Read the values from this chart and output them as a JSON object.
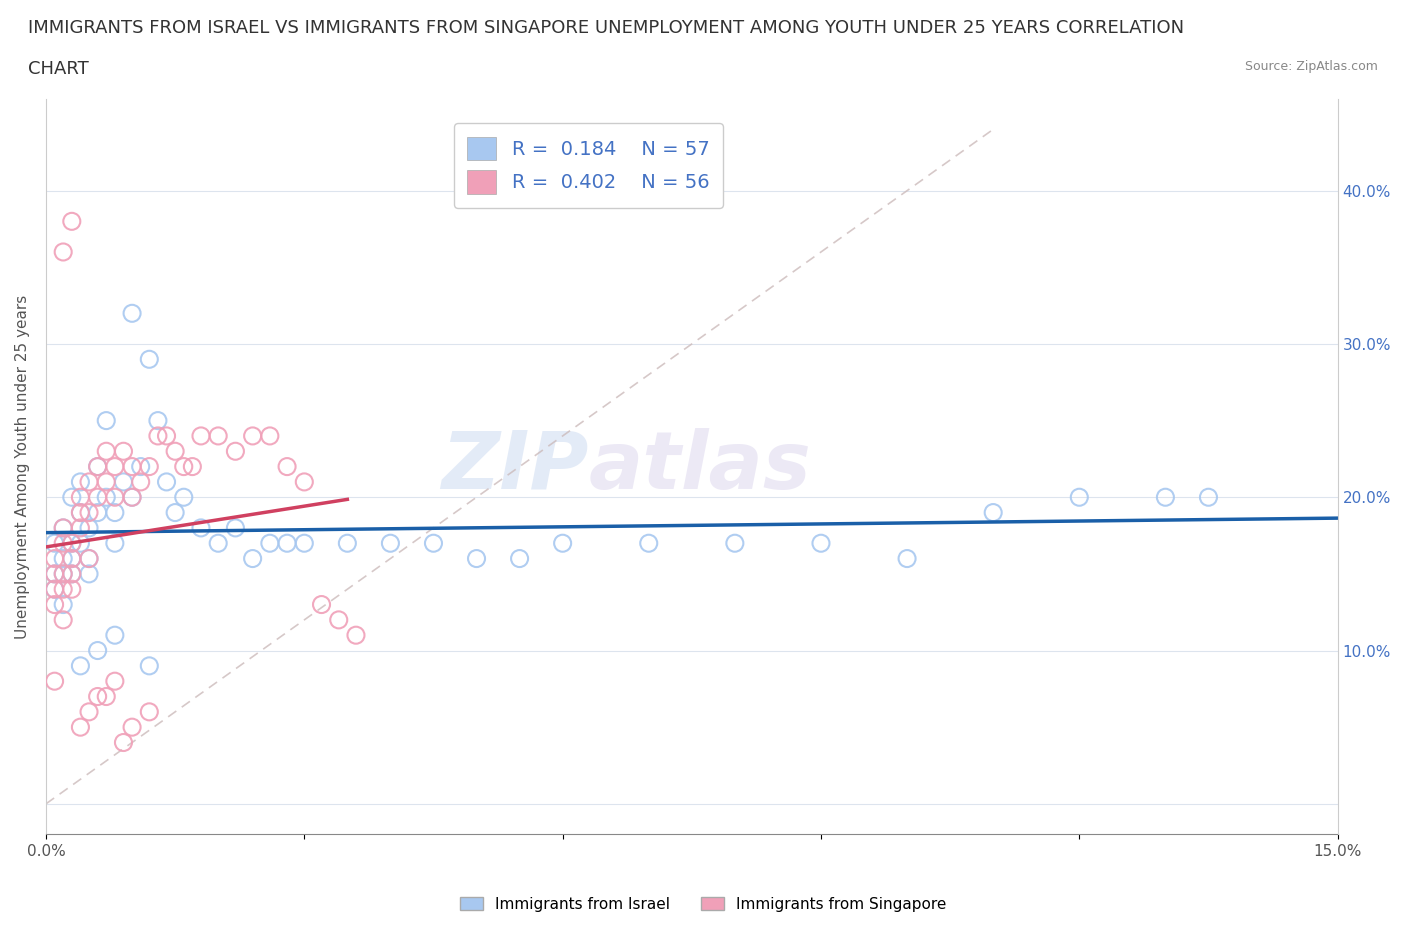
{
  "title_line1": "IMMIGRANTS FROM ISRAEL VS IMMIGRANTS FROM SINGAPORE UNEMPLOYMENT AMONG YOUTH UNDER 25 YEARS CORRELATION",
  "title_line2": "CHART",
  "source_text": "Source: ZipAtlas.com",
  "watermark_left": "ZIP",
  "watermark_right": "atlas",
  "ylabel": "Unemployment Among Youth under 25 years",
  "xlim": [
    0.0,
    0.15
  ],
  "ylim": [
    -0.02,
    0.46
  ],
  "israel_color": "#a8c8f0",
  "singapore_color": "#f0a0b8",
  "israel_line_color": "#1a5fa8",
  "singapore_line_color": "#d04060",
  "diag_line_color": "#ccbbbb",
  "legend_R_israel": "0.184",
  "legend_N_israel": "57",
  "legend_R_singapore": "0.402",
  "legend_N_singapore": "56",
  "legend_label_israel": "Immigrants from Israel",
  "legend_label_singapore": "Immigrants from Singapore",
  "background_color": "#ffffff",
  "grid_color": "#dde4ee",
  "title_fontsize": 13,
  "axis_label_fontsize": 11,
  "tick_fontsize": 11,
  "legend_text_color": "#4472c4",
  "right_tick_color": "#4472c4",
  "israel_x": [
    0.001,
    0.001,
    0.001,
    0.002,
    0.002,
    0.002,
    0.002,
    0.003,
    0.003,
    0.003,
    0.003,
    0.004,
    0.004,
    0.004,
    0.005,
    0.005,
    0.005,
    0.006,
    0.006,
    0.007,
    0.007,
    0.008,
    0.008,
    0.009,
    0.01,
    0.01,
    0.011,
    0.012,
    0.013,
    0.014,
    0.015,
    0.016,
    0.018,
    0.02,
    0.022,
    0.024,
    0.026,
    0.028,
    0.03,
    0.035,
    0.04,
    0.045,
    0.05,
    0.055,
    0.06,
    0.07,
    0.08,
    0.09,
    0.1,
    0.11,
    0.12,
    0.13,
    0.135,
    0.004,
    0.006,
    0.008,
    0.012
  ],
  "israel_y": [
    0.15,
    0.17,
    0.14,
    0.16,
    0.18,
    0.13,
    0.15,
    0.17,
    0.2,
    0.15,
    0.16,
    0.21,
    0.19,
    0.17,
    0.18,
    0.16,
    0.15,
    0.22,
    0.19,
    0.25,
    0.2,
    0.19,
    0.17,
    0.21,
    0.32,
    0.2,
    0.22,
    0.29,
    0.25,
    0.21,
    0.19,
    0.2,
    0.18,
    0.17,
    0.18,
    0.16,
    0.17,
    0.17,
    0.17,
    0.17,
    0.17,
    0.17,
    0.16,
    0.16,
    0.17,
    0.17,
    0.17,
    0.17,
    0.16,
    0.19,
    0.2,
    0.2,
    0.2,
    0.09,
    0.1,
    0.11,
    0.09
  ],
  "singapore_x": [
    0.001,
    0.001,
    0.001,
    0.001,
    0.001,
    0.002,
    0.002,
    0.002,
    0.002,
    0.002,
    0.003,
    0.003,
    0.003,
    0.003,
    0.004,
    0.004,
    0.004,
    0.005,
    0.005,
    0.005,
    0.006,
    0.006,
    0.007,
    0.007,
    0.008,
    0.008,
    0.009,
    0.01,
    0.01,
    0.011,
    0.012,
    0.013,
    0.014,
    0.015,
    0.016,
    0.017,
    0.018,
    0.02,
    0.022,
    0.024,
    0.026,
    0.028,
    0.03,
    0.032,
    0.034,
    0.036,
    0.002,
    0.003,
    0.004,
    0.005,
    0.006,
    0.007,
    0.008,
    0.009,
    0.01,
    0.012
  ],
  "singapore_y": [
    0.15,
    0.16,
    0.14,
    0.13,
    0.08,
    0.17,
    0.18,
    0.15,
    0.14,
    0.12,
    0.16,
    0.17,
    0.15,
    0.14,
    0.19,
    0.2,
    0.18,
    0.21,
    0.19,
    0.16,
    0.22,
    0.2,
    0.23,
    0.21,
    0.22,
    0.2,
    0.23,
    0.22,
    0.2,
    0.21,
    0.22,
    0.24,
    0.24,
    0.23,
    0.22,
    0.22,
    0.24,
    0.24,
    0.23,
    0.24,
    0.24,
    0.22,
    0.21,
    0.13,
    0.12,
    0.11,
    0.36,
    0.38,
    0.05,
    0.06,
    0.07,
    0.07,
    0.08,
    0.04,
    0.05,
    0.06
  ]
}
